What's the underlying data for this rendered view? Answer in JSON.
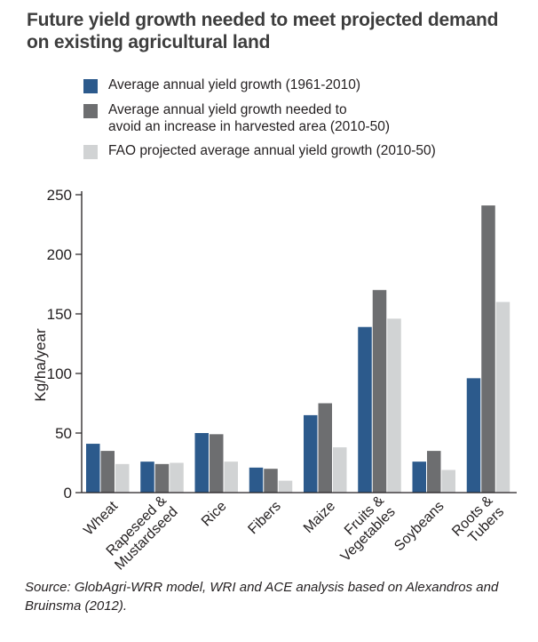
{
  "title": "Future yield growth needed to meet projected demand on existing  agricultural land",
  "source": "Source: GlobAgri-WRR model, WRI and ACE analysis based on Alexandros and Bruinsma (2012).",
  "chart_data": {
    "type": "bar",
    "title": "Future yield growth needed to meet projected demand on existing  agricultural land",
    "ylabel": "Kg/ha/year",
    "xlabel": "",
    "ylim": [
      0,
      250
    ],
    "yticks": [
      0,
      50,
      100,
      150,
      200,
      250
    ],
    "grid": false,
    "legend_position": "top",
    "categories": [
      [
        "Wheat"
      ],
      [
        "Rapeseed &",
        "Mustardseed"
      ],
      [
        "Rice"
      ],
      [
        "Fibers"
      ],
      [
        "Maize"
      ],
      [
        "Fruits &",
        "Vegetables"
      ],
      [
        "Soybeans"
      ],
      [
        "Roots &",
        "Tubers"
      ]
    ],
    "series": [
      {
        "name": "Average annual yield growth (1961-2010)",
        "color": "#2c5a8c",
        "values": [
          41,
          26,
          50,
          21,
          65,
          139,
          26,
          96
        ]
      },
      {
        "name": "Average annual yield growth needed to avoid an increase in harvested area (2010-50)",
        "color": "#6d6e70",
        "name_lines": [
          "Average annual yield growth needed to",
          "avoid an increase in harvested area (2010-50)"
        ],
        "values": [
          35,
          24,
          49,
          20,
          75,
          170,
          35,
          241
        ]
      },
      {
        "name": "FAO projected average annual yield growth (2010-50)",
        "color": "#d1d3d4",
        "values": [
          24,
          25,
          26,
          10,
          38,
          146,
          19,
          160
        ]
      }
    ]
  }
}
